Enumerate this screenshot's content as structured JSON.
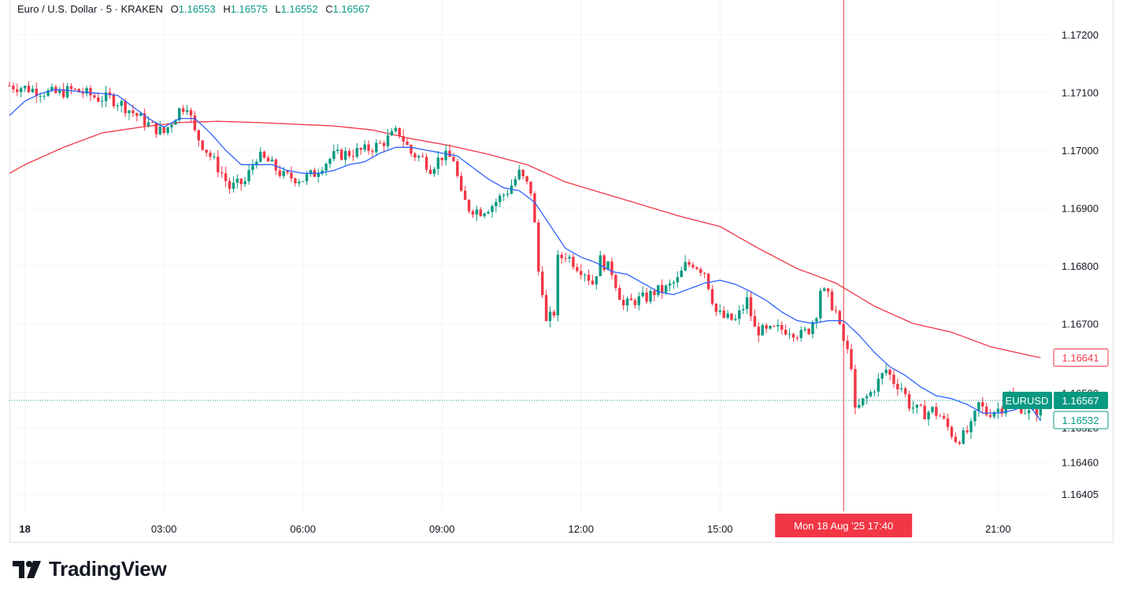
{
  "header": {
    "symbol": "Euro / U.S. Dollar · 5 · KRAKEN",
    "open_label": "O",
    "open": "1.16553",
    "high_label": "H",
    "high": "1.16575",
    "low_label": "L",
    "low": "1.16552",
    "close_label": "C",
    "close": "1.16567"
  },
  "brand": {
    "name": "TradingView"
  },
  "colors": {
    "up": "#089981",
    "down": "#f23645",
    "ma_fast": "#2962ff",
    "ma_slow": "#f23645",
    "crosshair": "#f23645"
  },
  "chart_data": {
    "type": "candlestick",
    "title": "Euro / U.S. Dollar · 5 · KRAKEN",
    "y_ticks": [
      "1.17200",
      "1.17100",
      "1.17000",
      "1.16900",
      "1.16800",
      "1.16700",
      "1.16580",
      "1.16520",
      "1.16460",
      "1.16405"
    ],
    "ylim": [
      1.16375,
      1.1726
    ],
    "x_ticks": [
      {
        "label": "18",
        "t": 0
      },
      {
        "label": "03:00",
        "t": 180
      },
      {
        "label": "06:00",
        "t": 360
      },
      {
        "label": "09:00",
        "t": 540
      },
      {
        "label": "12:00",
        "t": 720
      },
      {
        "label": "15:00",
        "t": 900
      },
      {
        "label": "21:00",
        "t": 1260
      }
    ],
    "xlim": [
      -20,
      1330
    ],
    "crosshair": {
      "t": 1060,
      "label": "Mon 18 Aug '25   17:40"
    },
    "price_labels": [
      {
        "name": "EURUSD",
        "value": "1.16567",
        "kind": "last"
      },
      {
        "name": "",
        "value": "1.16641",
        "kind": "ma_slow"
      },
      {
        "name": "",
        "value": "1.16532",
        "kind": "ma_fast"
      }
    ],
    "last_price": 1.16567,
    "price_keys": [
      [
        -20,
        1.17112
      ],
      [
        0,
        1.17108
      ],
      [
        20,
        1.17102
      ],
      [
        40,
        1.17098
      ],
      [
        60,
        1.17104
      ],
      [
        75,
        1.171
      ],
      [
        95,
        1.1709
      ],
      [
        110,
        1.1709
      ],
      [
        125,
        1.1708
      ],
      [
        145,
        1.1706
      ],
      [
        165,
        1.1704
      ],
      [
        180,
        1.1703
      ],
      [
        200,
        1.1707
      ],
      [
        210,
        1.1708
      ],
      [
        220,
        1.1703
      ],
      [
        235,
        1.17
      ],
      [
        255,
        1.1696
      ],
      [
        265,
        1.16935
      ],
      [
        285,
        1.16945
      ],
      [
        300,
        1.1699
      ],
      [
        315,
        1.1698
      ],
      [
        335,
        1.16955
      ],
      [
        360,
        1.1695
      ],
      [
        375,
        1.1696
      ],
      [
        385,
        1.16975
      ],
      [
        400,
        1.1699
      ],
      [
        420,
        1.16995
      ],
      [
        440,
        1.17
      ],
      [
        460,
        1.1701
      ],
      [
        480,
        1.1703
      ],
      [
        485,
        1.1703
      ],
      [
        500,
        1.16995
      ],
      [
        515,
        1.16985
      ],
      [
        525,
        1.1697
      ],
      [
        540,
        1.1699
      ],
      [
        555,
        1.16985
      ],
      [
        565,
        1.1692
      ],
      [
        575,
        1.169
      ],
      [
        590,
        1.16895
      ],
      [
        605,
        1.16905
      ],
      [
        625,
        1.1693
      ],
      [
        640,
        1.1696
      ],
      [
        650,
        1.1694
      ],
      [
        655,
        1.1693
      ],
      [
        660,
        1.1687
      ],
      [
        665,
        1.1679
      ],
      [
        670,
        1.1676
      ],
      [
        675,
        1.167
      ],
      [
        685,
        1.1672
      ],
      [
        690,
        1.1681
      ],
      [
        700,
        1.1682
      ],
      [
        715,
        1.168
      ],
      [
        725,
        1.1679
      ],
      [
        735,
        1.1677
      ],
      [
        745,
        1.1681
      ],
      [
        760,
        1.1679
      ],
      [
        775,
        1.1673
      ],
      [
        790,
        1.1674
      ],
      [
        805,
        1.16745
      ],
      [
        815,
        1.16755
      ],
      [
        830,
        1.1676
      ],
      [
        845,
        1.16775
      ],
      [
        855,
        1.168
      ],
      [
        865,
        1.16805
      ],
      [
        875,
        1.16795
      ],
      [
        880,
        1.1679
      ],
      [
        895,
        1.1672
      ],
      [
        905,
        1.1671
      ],
      [
        920,
        1.16705
      ],
      [
        935,
        1.1674
      ],
      [
        945,
        1.1669
      ],
      [
        960,
        1.16685
      ],
      [
        975,
        1.1669
      ],
      [
        990,
        1.1669
      ],
      [
        1005,
        1.1668
      ],
      [
        1015,
        1.1669
      ],
      [
        1025,
        1.1672
      ],
      [
        1030,
        1.1676
      ],
      [
        1040,
        1.16745
      ],
      [
        1050,
        1.1672
      ],
      [
        1055,
        1.1669
      ],
      [
        1065,
        1.1665
      ],
      [
        1070,
        1.1663
      ],
      [
        1075,
        1.16545
      ],
      [
        1085,
        1.16565
      ],
      [
        1095,
        1.1658
      ],
      [
        1105,
        1.166
      ],
      [
        1115,
        1.1662
      ],
      [
        1125,
        1.166
      ],
      [
        1135,
        1.1659
      ],
      [
        1145,
        1.1656
      ],
      [
        1155,
        1.1655
      ],
      [
        1165,
        1.16545
      ],
      [
        1175,
        1.1655
      ],
      [
        1185,
        1.1654
      ],
      [
        1195,
        1.1652
      ],
      [
        1205,
        1.165
      ],
      [
        1215,
        1.16505
      ],
      [
        1225,
        1.1652
      ],
      [
        1235,
        1.1656
      ],
      [
        1245,
        1.16545
      ],
      [
        1255,
        1.1655
      ],
      [
        1265,
        1.16555
      ],
      [
        1275,
        1.16575
      ],
      [
        1285,
        1.1656
      ],
      [
        1290,
        1.16555
      ],
      [
        1300,
        1.16545
      ],
      [
        1310,
        1.1655
      ],
      [
        1315,
        1.16567
      ]
    ],
    "ma_fast_keys": [
      [
        -20,
        1.1706
      ],
      [
        0,
        1.17085
      ],
      [
        20,
        1.17098
      ],
      [
        40,
        1.17105
      ],
      [
        60,
        1.17103
      ],
      [
        80,
        1.171
      ],
      [
        100,
        1.17098
      ],
      [
        120,
        1.17095
      ],
      [
        140,
        1.17075
      ],
      [
        160,
        1.17055
      ],
      [
        180,
        1.1704
      ],
      [
        200,
        1.17055
      ],
      [
        220,
        1.17055
      ],
      [
        240,
        1.1703
      ],
      [
        260,
        1.17
      ],
      [
        280,
        1.16975
      ],
      [
        300,
        1.16975
      ],
      [
        320,
        1.16975
      ],
      [
        340,
        1.16965
      ],
      [
        360,
        1.1696
      ],
      [
        380,
        1.1696
      ],
      [
        400,
        1.16965
      ],
      [
        420,
        1.16975
      ],
      [
        440,
        1.1698
      ],
      [
        460,
        1.16995
      ],
      [
        480,
        1.17005
      ],
      [
        500,
        1.17005
      ],
      [
        520,
        1.17
      ],
      [
        540,
        1.16995
      ],
      [
        560,
        1.1699
      ],
      [
        580,
        1.1697
      ],
      [
        600,
        1.1695
      ],
      [
        620,
        1.16935
      ],
      [
        640,
        1.1693
      ],
      [
        660,
        1.1691
      ],
      [
        680,
        1.1687
      ],
      [
        700,
        1.1683
      ],
      [
        720,
        1.16815
      ],
      [
        740,
        1.16805
      ],
      [
        760,
        1.1679
      ],
      [
        780,
        1.16785
      ],
      [
        800,
        1.1677
      ],
      [
        820,
        1.16755
      ],
      [
        840,
        1.1675
      ],
      [
        860,
        1.1676
      ],
      [
        880,
        1.1677
      ],
      [
        900,
        1.16775
      ],
      [
        920,
        1.16768
      ],
      [
        940,
        1.16755
      ],
      [
        960,
        1.1674
      ],
      [
        980,
        1.1672
      ],
      [
        1000,
        1.16705
      ],
      [
        1020,
        1.167
      ],
      [
        1040,
        1.16705
      ],
      [
        1060,
        1.16705
      ],
      [
        1080,
        1.1668
      ],
      [
        1100,
        1.1665
      ],
      [
        1120,
        1.16625
      ],
      [
        1140,
        1.1661
      ],
      [
        1160,
        1.1659
      ],
      [
        1180,
        1.16575
      ],
      [
        1200,
        1.1657
      ],
      [
        1220,
        1.1656
      ],
      [
        1240,
        1.16545
      ],
      [
        1260,
        1.16545
      ],
      [
        1280,
        1.1655
      ],
      [
        1300,
        1.1656
      ],
      [
        1315,
        1.16532
      ]
    ],
    "ma_slow_keys": [
      [
        -20,
        1.1696
      ],
      [
        0,
        1.16975
      ],
      [
        50,
        1.17005
      ],
      [
        100,
        1.1703
      ],
      [
        150,
        1.1704
      ],
      [
        200,
        1.17048
      ],
      [
        250,
        1.1705
      ],
      [
        300,
        1.17048
      ],
      [
        350,
        1.17045
      ],
      [
        400,
        1.17042
      ],
      [
        450,
        1.17035
      ],
      [
        500,
        1.1702
      ],
      [
        550,
        1.17008
      ],
      [
        600,
        1.16993
      ],
      [
        650,
        1.16975
      ],
      [
        700,
        1.16945
      ],
      [
        750,
        1.16925
      ],
      [
        800,
        1.16905
      ],
      [
        850,
        1.16885
      ],
      [
        900,
        1.16868
      ],
      [
        950,
        1.1683
      ],
      [
        1000,
        1.16795
      ],
      [
        1050,
        1.1677
      ],
      [
        1100,
        1.1673
      ],
      [
        1150,
        1.167
      ],
      [
        1200,
        1.16685
      ],
      [
        1250,
        1.1666
      ],
      [
        1300,
        1.16645
      ],
      [
        1315,
        1.16641
      ]
    ]
  }
}
